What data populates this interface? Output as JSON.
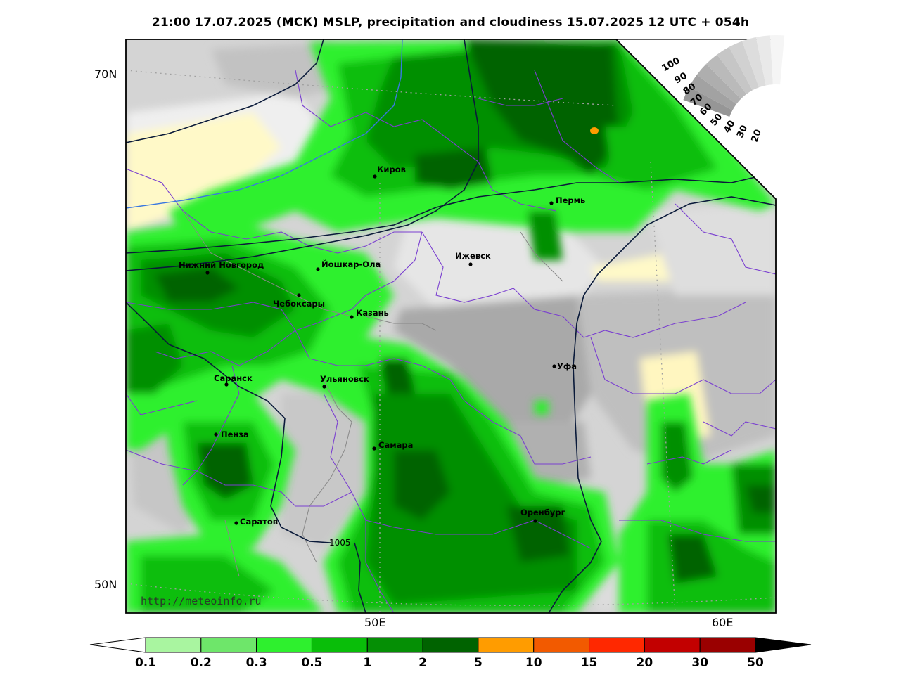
{
  "title": "21:00 17.07.2025 (МСК) MSLP, precipitation and cloudiness 15.07.2025 12 UTC + 054h",
  "latitude_labels": [
    "70N",
    "50N"
  ],
  "longitude_labels": [
    "50E",
    "60E"
  ],
  "credit": "http://meteoinfo.ru",
  "isobar_label": "1005",
  "cities": [
    {
      "name": "Киров"
    },
    {
      "name": "Пермь"
    },
    {
      "name": "Ижевск"
    },
    {
      "name": "Нижний Новгород"
    },
    {
      "name": "Йошкар-Ола"
    },
    {
      "name": "Чебоксары"
    },
    {
      "name": "Казань"
    },
    {
      "name": "Уфа"
    },
    {
      "name": "Саранск"
    },
    {
      "name": "Ульяновск"
    },
    {
      "name": "Пенза"
    },
    {
      "name": "Самара"
    },
    {
      "name": "Оренбург"
    },
    {
      "name": "Саратов"
    }
  ],
  "cloud_scale": {
    "labels": [
      "100",
      "90",
      "80",
      "70",
      "60",
      "50",
      "40",
      "30",
      "20"
    ]
  },
  "precip_scale": {
    "labels": [
      "0.1",
      "0.2",
      "0.3",
      "0.5",
      "1",
      "2",
      "5",
      "10",
      "15",
      "20",
      "30",
      "50"
    ],
    "colors": [
      "#a9f5a0",
      "#6ee66a",
      "#2ef02e",
      "#09be09",
      "#058f05",
      "#006300",
      "#ff9c00",
      "#f25a00",
      "#ff2800",
      "#c20000",
      "#9a0000"
    ]
  },
  "colors": {
    "precip_light": "#7cf07c",
    "precip_medium": "#20d820",
    "precip_heavy": "#0a8a0a",
    "precip_very_heavy": "#005a00",
    "cloud_gray": "#b4b4b4",
    "cloud_light": "#dcdcdc",
    "clear_yellow": "#fff9c8",
    "borders": "#7a3fd0",
    "isobar": "#0a1a3a",
    "isotherm": "#3a78e0"
  }
}
